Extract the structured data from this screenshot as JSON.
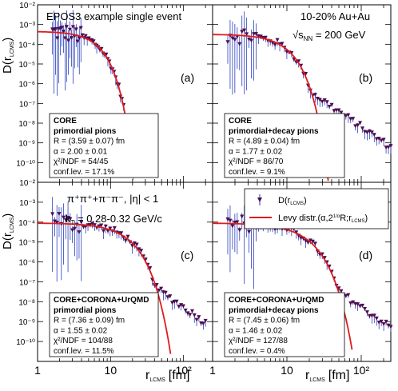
{
  "chart_data": {
    "type": "scatter",
    "layout": "2x2 panels",
    "xscale": "log",
    "yscale": "log",
    "xlim": [
      1,
      250
    ],
    "ylim": [
      1e-11,
      0.01
    ],
    "x_tick_labels": [
      "1",
      "10",
      "10²"
    ],
    "y_tick_labels": [
      "10⁻²",
      "10⁻³",
      "10⁻⁴",
      "10⁻⁵",
      "10⁻⁶",
      "10⁻⁷",
      "10⁻⁸",
      "10⁻⁹",
      "10⁻¹⁰"
    ],
    "xlabel": "r",
    "xlabel_sub": "LCMS",
    "xlabel_unit": "[fm]",
    "ylabel": "D(r",
    "ylabel_sub": "LCMS",
    "ylabel_close": ")",
    "header_left": "EPOS3 example single event",
    "header_right_1": "10-20% Au+Au",
    "header_right_2_base": "√s",
    "header_right_2_sub": "NN",
    "header_right_2_rest": " = 200 GeV",
    "particles_text": "π⁺π⁺+π⁻π⁻, |η| < 1",
    "kt_text_base": "k",
    "kt_text_sub": "T",
    "kt_text_rest": " = 0.28-0.32 GeV/c",
    "legend": {
      "data_label": "D(r",
      "data_sub": "LCMS",
      "data_close": ")",
      "fit_label": "Levy distr.(α,2",
      "fit_sup": "1/α",
      "fit_rest": "R;r",
      "fit_sub": "LCMS",
      "fit_close": ")"
    },
    "colors": {
      "data_marker": "#4b0f52",
      "error_bar": "#2a3fbf",
      "fit_line": "#e01b1b"
    },
    "panels": [
      {
        "label": "(a)",
        "title": "CORE",
        "subtitle": "primordial pions",
        "R_text": "R = (3.59 ± 0.07) fm",
        "alpha_text": "α = 2.00 ± 0.01",
        "chi2_text": "χ²/NDF = 54/45",
        "conf_text": "conf.lev. = 17.1%",
        "R": 3.59,
        "alpha": 2.0,
        "chi2": 54,
        "ndf": 45,
        "conf_level": 17.1,
        "norm": 0.00045,
        "x_max_data": 50,
        "fit_range": [
          1.5,
          60
        ]
      },
      {
        "label": "(b)",
        "title": "CORE",
        "subtitle": "primordial+decay pions",
        "R_text": "R = (4.89 ± 0.04) fm",
        "alpha_text": "α = 1.77 ± 0.02",
        "chi2_text": "χ²/NDF = 86/70",
        "conf_text": "conf.lev. = 9.1%",
        "R": 4.89,
        "alpha": 1.77,
        "chi2": 86,
        "ndf": 70,
        "conf_level": 9.1,
        "norm": 0.00032,
        "x_max_data": 250,
        "fit_range": [
          1.5,
          60
        ]
      },
      {
        "label": "(c)",
        "title": "CORE+CORONA+UrQMD",
        "subtitle": "primordial pions",
        "R_text": "R = (7.36 ± 0.09) fm",
        "alpha_text": "α = 1.55 ± 0.02",
        "chi2_text": "χ²/NDF = 104/88",
        "conf_text": "conf.lev. = 11.5%",
        "R": 7.36,
        "alpha": 1.55,
        "chi2": 104,
        "ndf": 88,
        "conf_level": 11.5,
        "norm": 9e-05,
        "x_max_data": 200,
        "fit_range": [
          1.5,
          150
        ]
      },
      {
        "label": "(d)",
        "title": "CORE+CORONA+UrQMD",
        "subtitle": "primordial+decay pions",
        "R_text": "R = (7.45 ± 0.06) fm",
        "alpha_text": "α = 1.46 ± 0.02",
        "chi2_text": "χ²/NDF = 127/88",
        "conf_text": "conf.lev. = 0.4%",
        "R": 7.45,
        "alpha": 1.46,
        "chi2": 127,
        "ndf": 88,
        "conf_level": 0.4,
        "norm": 9e-05,
        "x_max_data": 250,
        "fit_range": [
          1.5,
          150
        ]
      }
    ]
  }
}
